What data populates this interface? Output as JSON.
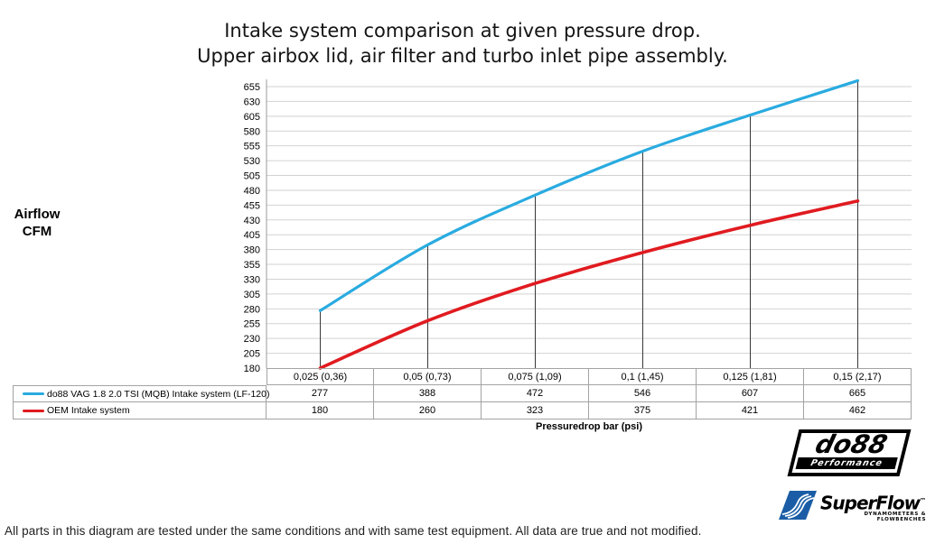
{
  "title": {
    "line1": "Intake system comparison at given pressure drop.",
    "line2": "Upper airbox lid, air filter and turbo inlet pipe assembly."
  },
  "y_axis": {
    "label_line1": "Airflow",
    "label_line2": "CFM"
  },
  "x_axis": {
    "label": "Pressuredrop bar (psi)"
  },
  "chart_data": {
    "type": "line",
    "categories": [
      "0,025 (0,36)",
      "0,05 (0,73)",
      "0,075 (1,09)",
      "0,1 (1,45)",
      "0,125 (1,81)",
      "0,15 (2,17)"
    ],
    "series": [
      {
        "name": "do88 VAG 1.8 2.0 TSI (MQB) Intake system (LF-120)",
        "values": [
          277,
          388,
          472,
          546,
          607,
          665
        ],
        "color": "#29ABE0"
      },
      {
        "name": "OEM Intake system",
        "values": [
          180,
          260,
          323,
          375,
          421,
          462
        ],
        "color": "#E01B20"
      }
    ],
    "ylim": [
      180,
      655
    ],
    "ytick_step": 25,
    "grid": "horizontal",
    "legend_position": "table-left",
    "smooth_lines": true
  },
  "colors": {
    "gridline": "#D2D2D2",
    "axis": "#9B9B9B",
    "dropline": "#383838",
    "table_border": "#A3A3A3",
    "superflow_blue": "#1A5DA6"
  },
  "logos": {
    "do88": {
      "name": "do88",
      "sub": "Performance"
    },
    "superflow": {
      "name": "SuperFlow",
      "tm": "™",
      "sub": "DYNAMOMETERS & FLOWBENCHES"
    }
  },
  "footer": {
    "text": "All parts in this diagram are tested under the same conditions and with same test equipment. All data are true and not modified."
  }
}
